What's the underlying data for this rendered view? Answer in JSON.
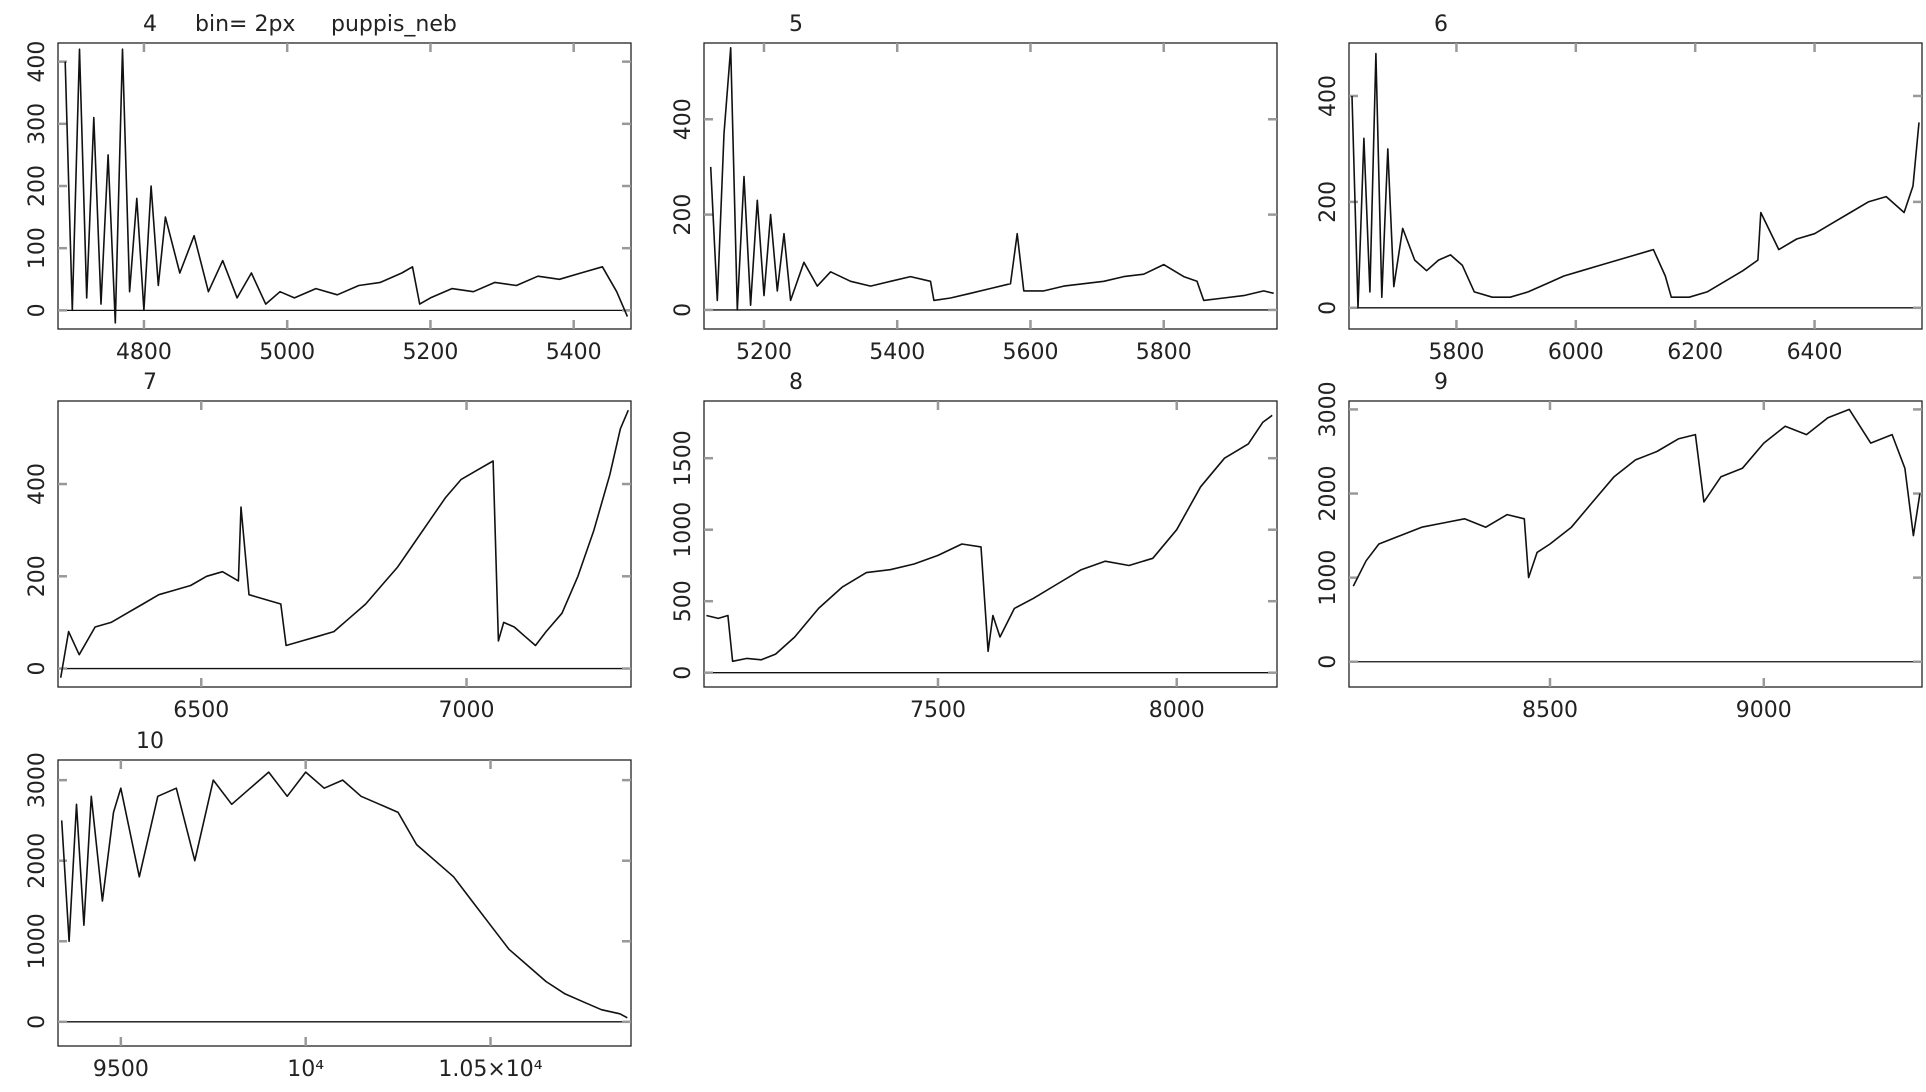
{
  "chart_data": [
    {
      "type": "line",
      "title": "4",
      "annotations": [
        "bin= 2px",
        "puppis_neb"
      ],
      "x": [
        4690,
        4700,
        4710,
        4720,
        4730,
        4740,
        4750,
        4760,
        4770,
        4780,
        4790,
        4800,
        4810,
        4820,
        4830,
        4850,
        4870,
        4890,
        4910,
        4930,
        4950,
        4970,
        4990,
        5010,
        5040,
        5070,
        5100,
        5130,
        5160,
        5175,
        5185,
        5200,
        5230,
        5260,
        5290,
        5320,
        5350,
        5380,
        5410,
        5440,
        5460,
        5475
      ],
      "values": [
        400,
        0,
        420,
        20,
        310,
        10,
        250,
        -20,
        420,
        30,
        180,
        0,
        200,
        40,
        150,
        60,
        120,
        30,
        80,
        20,
        60,
        10,
        30,
        20,
        35,
        25,
        40,
        45,
        60,
        70,
        10,
        20,
        35,
        30,
        45,
        40,
        55,
        50,
        60,
        70,
        30,
        -10
      ],
      "color": "#111111",
      "xlim": [
        4680,
        5480
      ],
      "xticks": [
        4800,
        5000,
        5200,
        5400
      ],
      "ylim": [
        -30,
        430
      ],
      "yticks": [
        0,
        100,
        200,
        300,
        400
      ]
    },
    {
      "type": "line",
      "title": "5",
      "x": [
        5120,
        5130,
        5140,
        5150,
        5160,
        5170,
        5180,
        5190,
        5200,
        5210,
        5220,
        5230,
        5240,
        5260,
        5280,
        5300,
        5330,
        5360,
        5390,
        5420,
        5450,
        5455,
        5480,
        5510,
        5540,
        5570,
        5580,
        5590,
        5620,
        5650,
        5680,
        5710,
        5740,
        5770,
        5800,
        5830,
        5850,
        5860,
        5890,
        5920,
        5950,
        5965
      ],
      "values": [
        300,
        20,
        370,
        550,
        0,
        280,
        10,
        230,
        30,
        200,
        40,
        160,
        20,
        100,
        50,
        80,
        60,
        50,
        60,
        70,
        60,
        20,
        25,
        35,
        45,
        55,
        160,
        40,
        40,
        50,
        55,
        60,
        70,
        75,
        95,
        70,
        60,
        20,
        25,
        30,
        40,
        35
      ],
      "color": "#111111",
      "xlim": [
        5110,
        5970
      ],
      "xticks": [
        5200,
        5400,
        5600,
        5800
      ],
      "ylim": [
        -40,
        560
      ],
      "yticks": [
        0,
        200,
        400
      ]
    },
    {
      "type": "line",
      "title": "6",
      "x": [
        5625,
        5635,
        5645,
        5655,
        5665,
        5675,
        5685,
        5695,
        5710,
        5730,
        5750,
        5770,
        5790,
        5810,
        5830,
        5860,
        5890,
        5920,
        5950,
        5980,
        6010,
        6040,
        6070,
        6100,
        6130,
        6150,
        6160,
        6190,
        6220,
        6250,
        6280,
        6305,
        6310,
        6340,
        6370,
        6400,
        6430,
        6460,
        6490,
        6520,
        6550,
        6565,
        6575
      ],
      "values": [
        400,
        0,
        320,
        30,
        480,
        20,
        300,
        40,
        150,
        90,
        70,
        90,
        100,
        80,
        30,
        20,
        20,
        30,
        45,
        60,
        70,
        80,
        90,
        100,
        110,
        60,
        20,
        20,
        30,
        50,
        70,
        90,
        180,
        110,
        130,
        140,
        160,
        180,
        200,
        210,
        180,
        230,
        350
      ],
      "color": "#111111",
      "xlim": [
        5620,
        6580
      ],
      "xticks": [
        5800,
        6000,
        6200,
        6400
      ],
      "ylim": [
        -40,
        500
      ],
      "yticks": [
        0,
        200,
        400
      ]
    },
    {
      "type": "line",
      "title": "7",
      "x": [
        6235,
        6250,
        6270,
        6300,
        6330,
        6360,
        6390,
        6420,
        6450,
        6480,
        6510,
        6540,
        6570,
        6575,
        6590,
        6620,
        6650,
        6660,
        6690,
        6720,
        6750,
        6780,
        6810,
        6840,
        6870,
        6900,
        6930,
        6960,
        6990,
        7020,
        7050,
        7060,
        7070,
        7090,
        7110,
        7130,
        7150,
        7180,
        7210,
        7240,
        7270,
        7290,
        7305
      ],
      "values": [
        -20,
        80,
        30,
        90,
        100,
        120,
        140,
        160,
        170,
        180,
        200,
        210,
        190,
        350,
        160,
        150,
        140,
        50,
        60,
        70,
        80,
        110,
        140,
        180,
        220,
        270,
        320,
        370,
        410,
        430,
        450,
        60,
        100,
        90,
        70,
        50,
        80,
        120,
        200,
        300,
        420,
        520,
        560
      ],
      "color": "#111111",
      "xlim": [
        6230,
        7310
      ],
      "xticks": [
        6500,
        7000
      ],
      "ylim": [
        -40,
        580
      ],
      "yticks": [
        0,
        200,
        400
      ]
    },
    {
      "type": "line",
      "title": "8",
      "x": [
        7015,
        7040,
        7060,
        7070,
        7100,
        7130,
        7160,
        7200,
        7250,
        7300,
        7350,
        7400,
        7450,
        7500,
        7550,
        7590,
        7605,
        7615,
        7630,
        7660,
        7700,
        7750,
        7800,
        7850,
        7900,
        7950,
        8000,
        8050,
        8100,
        8150,
        8180,
        8200
      ],
      "values": [
        400,
        380,
        400,
        80,
        100,
        90,
        130,
        250,
        450,
        600,
        700,
        720,
        760,
        820,
        900,
        880,
        150,
        400,
        250,
        450,
        520,
        620,
        720,
        780,
        750,
        800,
        1000,
        1300,
        1500,
        1600,
        1750,
        1800
      ],
      "color": "#111111",
      "xlim": [
        7010,
        8210
      ],
      "xticks": [
        7500,
        8000
      ],
      "ylim": [
        -100,
        1900
      ],
      "yticks": [
        0,
        500,
        1000,
        1500
      ]
    },
    {
      "type": "line",
      "title": "9",
      "x": [
        8040,
        8070,
        8100,
        8150,
        8200,
        8250,
        8300,
        8350,
        8400,
        8440,
        8450,
        8470,
        8500,
        8550,
        8600,
        8650,
        8700,
        8750,
        8800,
        8840,
        8860,
        8900,
        8950,
        9000,
        9050,
        9100,
        9150,
        9200,
        9250,
        9300,
        9330,
        9350,
        9365
      ],
      "values": [
        900,
        1200,
        1400,
        1500,
        1600,
        1650,
        1700,
        1600,
        1750,
        1700,
        1000,
        1300,
        1400,
        1600,
        1900,
        2200,
        2400,
        2500,
        2650,
        2700,
        1900,
        2200,
        2300,
        2600,
        2800,
        2700,
        2900,
        3000,
        2600,
        2700,
        2300,
        1500,
        2000
      ],
      "color": "#111111",
      "xlim": [
        8030,
        9370
      ],
      "xticks": [
        8500,
        9000
      ],
      "ylim": [
        -300,
        3100
      ],
      "yticks": [
        0,
        1000,
        2000,
        3000
      ]
    },
    {
      "type": "line",
      "title": "10",
      "x": [
        9340,
        9360,
        9380,
        9400,
        9420,
        9450,
        9480,
        9500,
        9550,
        9600,
        9650,
        9700,
        9750,
        9800,
        9850,
        9900,
        9950,
        10000,
        10050,
        10100,
        10150,
        10200,
        10250,
        10300,
        10350,
        10400,
        10450,
        10500,
        10550,
        10600,
        10650,
        10700,
        10750,
        10800,
        10850,
        10870
      ],
      "values": [
        2500,
        1000,
        2700,
        1200,
        2800,
        1500,
        2600,
        2900,
        1800,
        2800,
        2900,
        2000,
        3000,
        2700,
        2900,
        3100,
        2800,
        3100,
        2900,
        3000,
        2800,
        2700,
        2600,
        2200,
        2000,
        1800,
        1500,
        1200,
        900,
        700,
        500,
        350,
        250,
        150,
        100,
        50
      ],
      "color": "#111111",
      "xlim": [
        9330,
        10880
      ],
      "xticks": [
        9500,
        {
          "value": 10000,
          "label": "10⁴"
        },
        {
          "value": 10500,
          "label": "1.05×10⁴"
        }
      ],
      "ylim": [
        -300,
        3250
      ],
      "yticks": [
        0,
        1000,
        2000,
        3000
      ]
    }
  ]
}
